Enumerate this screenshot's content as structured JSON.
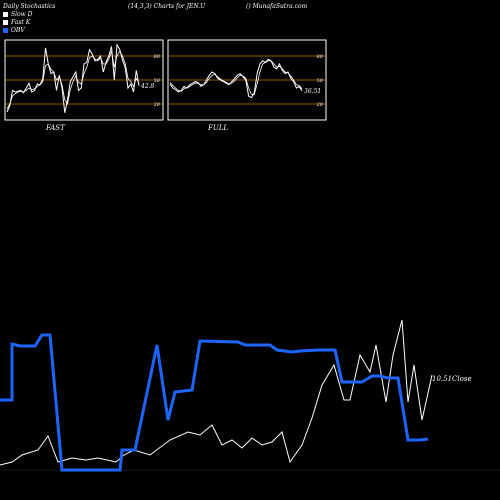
{
  "header": {
    "title": "Daily Stochastics",
    "params": "(14,3,3) Charts for JEN.U",
    "site": "() MunafaSutra.com"
  },
  "legend": [
    {
      "label": "Slow  D",
      "color": "#ffffff"
    },
    {
      "label": "Fast K",
      "color": "#ffffff"
    },
    {
      "label": "OBV",
      "color": "#1e64ff"
    }
  ],
  "colors": {
    "obv": "#1e64ff",
    "close": "#ffffff",
    "grid": "#c87800",
    "stoch": "#ffffff",
    "panel_border": "#ffffff"
  },
  "chart_data": [
    {
      "type": "line",
      "title": "FAST",
      "ylim": [
        0,
        100
      ],
      "ytick_labels": [
        "80",
        "50",
        "20"
      ],
      "value_label": "42.8",
      "series": [
        {
          "name": "Fast K",
          "values": [
            10,
            18,
            37,
            35,
            36,
            37,
            34,
            40,
            46,
            35,
            37,
            45,
            44,
            52,
            90,
            70,
            58,
            60,
            37,
            56,
            40,
            9,
            25,
            48,
            54,
            60,
            37,
            40,
            70,
            72,
            88,
            82,
            74,
            76,
            80,
            60,
            72,
            80,
            92,
            50,
            94,
            88,
            75,
            65,
            40,
            45,
            35,
            62,
            42.8
          ]
        },
        {
          "name": "Slow D",
          "values": [
            14,
            20,
            30,
            33,
            35,
            36,
            35,
            37,
            40,
            38,
            39,
            42,
            44,
            48,
            68,
            70,
            63,
            60,
            50,
            54,
            44,
            25,
            20,
            38,
            48,
            55,
            47,
            45,
            58,
            66,
            78,
            80,
            76,
            74,
            78,
            70,
            70,
            76,
            86,
            66,
            80,
            86,
            80,
            70,
            52,
            48,
            42,
            52,
            46
          ]
        }
      ]
    },
    {
      "type": "line",
      "title": "FULL",
      "ylim": [
        0,
        100
      ],
      "ytick_labels": [
        "80",
        "50",
        "20"
      ],
      "value_label": "36.51",
      "series": [
        {
          "name": "Full K",
          "values": [
            45,
            40,
            38,
            35,
            37,
            42,
            40,
            44,
            46,
            48,
            47,
            42,
            44,
            50,
            56,
            60,
            58,
            52,
            50,
            48,
            46,
            44,
            48,
            52,
            56,
            58,
            54,
            50,
            30,
            28,
            34,
            58,
            70,
            74,
            72,
            76,
            74,
            66,
            64,
            70,
            62,
            58,
            60,
            52,
            48,
            40,
            42,
            36.51
          ]
        },
        {
          "name": "Full D",
          "values": [
            47,
            43,
            40,
            37,
            36,
            39,
            40,
            42,
            44,
            46,
            46,
            44,
            44,
            47,
            52,
            56,
            57,
            54,
            51,
            49,
            47,
            45,
            46,
            49,
            53,
            56,
            55,
            52,
            40,
            32,
            32,
            45,
            60,
            70,
            72,
            74,
            74,
            70,
            66,
            67,
            64,
            60,
            59,
            55,
            50,
            44,
            43,
            39
          ]
        }
      ]
    },
    {
      "type": "line",
      "title": "",
      "value_label": "10.51",
      "value_label_suffix": "Close",
      "series": [
        {
          "name": "OBV",
          "values": [
            285,
            285,
            285,
            285,
            285,
            285,
            285,
            285,
            285,
            285,
            285,
            285,
            285,
            285,
            285,
            285,
            285,
            285,
            285,
            285,
            285,
            285,
            285,
            285,
            285,
            285,
            285,
            285,
            285,
            285,
            285,
            285,
            285,
            285,
            285,
            285,
            285,
            285,
            285,
            285,
            285,
            285,
            285,
            285,
            285,
            285,
            285,
            285,
            285,
            285,
            285,
            285,
            285,
            285,
            285,
            285,
            285,
            285,
            285,
            285,
            285,
            285,
            285,
            285,
            285,
            285,
            285,
            285,
            285,
            285,
            285
          ]
        }
      ]
    }
  ],
  "obv_points": [
    [
      0,
      400
    ],
    [
      12,
      400
    ],
    [
      12,
      344
    ],
    [
      20,
      346
    ],
    [
      35,
      346
    ],
    [
      42,
      335
    ],
    [
      50,
      335
    ],
    [
      62,
      470
    ],
    [
      120,
      470
    ],
    [
      122,
      450
    ],
    [
      135,
      450
    ],
    [
      157,
      345
    ],
    [
      168,
      420
    ],
    [
      175,
      392
    ],
    [
      192,
      390
    ],
    [
      200,
      341
    ],
    [
      238,
      342
    ],
    [
      245,
      345
    ],
    [
      270,
      345
    ],
    [
      277,
      350
    ],
    [
      292,
      352
    ],
    [
      300,
      351
    ],
    [
      318,
      350
    ],
    [
      335,
      350
    ],
    [
      342,
      382
    ],
    [
      362,
      382
    ],
    [
      372,
      376
    ],
    [
      380,
      376
    ],
    [
      388,
      378
    ],
    [
      398,
      378
    ],
    [
      408,
      440
    ],
    [
      420,
      440
    ],
    [
      428,
      439
    ]
  ],
  "close_points": [
    [
      0,
      465
    ],
    [
      12,
      462
    ],
    [
      22,
      455
    ],
    [
      38,
      450
    ],
    [
      48,
      436
    ],
    [
      58,
      462
    ],
    [
      72,
      458
    ],
    [
      86,
      460
    ],
    [
      98,
      458
    ],
    [
      116,
      462
    ],
    [
      124,
      455
    ],
    [
      134,
      450
    ],
    [
      150,
      455
    ],
    [
      170,
      440
    ],
    [
      188,
      432
    ],
    [
      200,
      435
    ],
    [
      212,
      425
    ],
    [
      222,
      445
    ],
    [
      232,
      440
    ],
    [
      242,
      448
    ],
    [
      252,
      438
    ],
    [
      262,
      445
    ],
    [
      272,
      442
    ],
    [
      282,
      432
    ],
    [
      290,
      462
    ],
    [
      302,
      445
    ],
    [
      312,
      418
    ],
    [
      322,
      385
    ],
    [
      334,
      365
    ],
    [
      344,
      400
    ],
    [
      350,
      400
    ],
    [
      360,
      355
    ],
    [
      370,
      372
    ],
    [
      376,
      345
    ],
    [
      386,
      402
    ],
    [
      393,
      355
    ],
    [
      402,
      320
    ],
    [
      408,
      402
    ],
    [
      414,
      365
    ],
    [
      422,
      420
    ],
    [
      432,
      375
    ]
  ]
}
